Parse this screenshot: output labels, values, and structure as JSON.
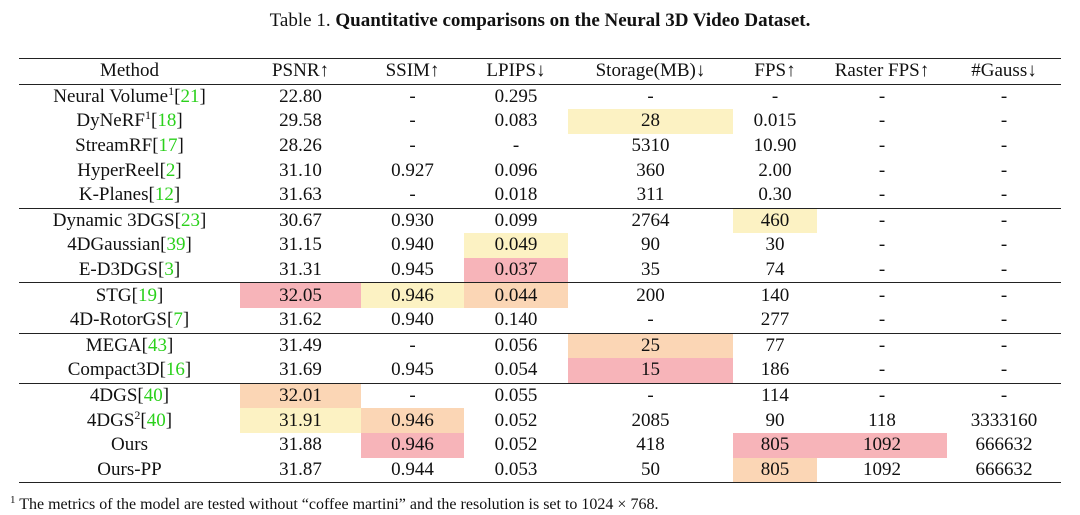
{
  "caption": {
    "prefix": "Table 1.",
    "title": "Quantitative comparisons on the Neural 3D Video Dataset."
  },
  "table": {
    "headers": [
      "Method",
      "PSNR↑",
      "SSIM↑",
      "LPIPS↓",
      "Storage(MB)↓",
      "FPS↑",
      "Raster FPS↑",
      "#Gauss↓"
    ],
    "rows": [
      {
        "method": "Neural Volume",
        "sup": "1",
        "ref": "21",
        "group_start": false,
        "cells": [
          "22.80",
          "-",
          "0.295",
          "-",
          "-",
          "-",
          "-"
        ]
      },
      {
        "method": "DyNeRF",
        "sup": "1",
        "ref": "18",
        "group_start": false,
        "cells": [
          "29.58",
          "-",
          "0.083",
          "28",
          "0.015",
          "-",
          "-"
        ]
      },
      {
        "method": "StreamRF",
        "sup": "",
        "ref": "17",
        "group_start": false,
        "cells": [
          "28.26",
          "-",
          "-",
          "5310",
          "10.90",
          "-",
          "-"
        ]
      },
      {
        "method": "HyperReel",
        "sup": "",
        "ref": "2",
        "group_start": false,
        "cells": [
          "31.10",
          "0.927",
          "0.096",
          "360",
          "2.00",
          "-",
          "-"
        ]
      },
      {
        "method": "K-Planes",
        "sup": "",
        "ref": "12",
        "group_start": false,
        "cells": [
          "31.63",
          "-",
          "0.018",
          "311",
          "0.30",
          "-",
          "-"
        ]
      },
      {
        "method": "Dynamic 3DGS",
        "sup": "",
        "ref": "23",
        "group_start": true,
        "cells": [
          "30.67",
          "0.930",
          "0.099",
          "2764",
          "460",
          "-",
          "-"
        ]
      },
      {
        "method": "4DGaussian",
        "sup": "",
        "ref": "39",
        "group_start": false,
        "cells": [
          "31.15",
          "0.940",
          "0.049",
          "90",
          "30",
          "-",
          "-"
        ]
      },
      {
        "method": "E-D3DGS",
        "sup": "",
        "ref": "3",
        "group_start": false,
        "cells": [
          "31.31",
          "0.945",
          "0.037",
          "35",
          "74",
          "-",
          "-"
        ]
      },
      {
        "method": "STG",
        "sup": "",
        "ref": "19",
        "group_start": true,
        "cells": [
          "32.05",
          "0.946",
          "0.044",
          "200",
          "140",
          "-",
          "-"
        ]
      },
      {
        "method": "4D-RotorGS",
        "sup": "",
        "ref": "7",
        "group_start": false,
        "cells": [
          "31.62",
          "0.940",
          "0.140",
          "-",
          "277",
          "-",
          "-"
        ]
      },
      {
        "method": "MEGA",
        "sup": "",
        "ref": "43",
        "group_start": true,
        "cells": [
          "31.49",
          "-",
          "0.056",
          "25",
          "77",
          "-",
          "-"
        ]
      },
      {
        "method": "Compact3D",
        "sup": "",
        "ref": "16",
        "group_start": false,
        "cells": [
          "31.69",
          "0.945",
          "0.054",
          "15",
          "186",
          "-",
          "-"
        ]
      },
      {
        "method": "4DGS",
        "sup": "",
        "ref": "40",
        "group_start": true,
        "cells": [
          "32.01",
          "-",
          "0.055",
          "-",
          "114",
          "-",
          "-"
        ]
      },
      {
        "method": "4DGS",
        "sup": "2",
        "ref": "40",
        "group_start": false,
        "cells": [
          "31.91",
          "0.946",
          "0.052",
          "2085",
          "90",
          "118",
          "3333160"
        ]
      },
      {
        "method": "Ours",
        "sup": "",
        "ref": "",
        "group_start": false,
        "cells": [
          "31.88",
          "0.946",
          "0.052",
          "418",
          "805",
          "1092",
          "666632"
        ]
      },
      {
        "method": "Ours-PP",
        "sup": "",
        "ref": "",
        "group_start": false,
        "cells": [
          "31.87",
          "0.944",
          "0.053",
          "50",
          "805",
          "1092",
          "666632"
        ]
      }
    ],
    "highlights": [
      {
        "row": 1,
        "col": 3,
        "rank": "third"
      },
      {
        "row": 5,
        "col": 4,
        "rank": "third"
      },
      {
        "row": 6,
        "col": 2,
        "rank": "third"
      },
      {
        "row": 7,
        "col": 2,
        "rank": "first"
      },
      {
        "row": 8,
        "col": 0,
        "rank": "first"
      },
      {
        "row": 8,
        "col": 1,
        "rank": "third"
      },
      {
        "row": 8,
        "col": 2,
        "rank": "second"
      },
      {
        "row": 10,
        "col": 3,
        "rank": "second"
      },
      {
        "row": 11,
        "col": 3,
        "rank": "first"
      },
      {
        "row": 12,
        "col": 0,
        "rank": "second"
      },
      {
        "row": 13,
        "col": 0,
        "rank": "third"
      },
      {
        "row": 13,
        "col": 1,
        "rank": "second"
      },
      {
        "row": 14,
        "col": 1,
        "rank": "first"
      },
      {
        "row": 14,
        "col": 4,
        "rank": "first"
      },
      {
        "row": 14,
        "col": 5,
        "rank": "first"
      },
      {
        "row": 15,
        "col": 4,
        "rank": "second"
      }
    ],
    "bold": [
      {
        "row": 14,
        "col": 4
      },
      {
        "row": 14,
        "col": 5
      },
      {
        "row": 15,
        "col": 3
      }
    ],
    "colors": {
      "first": "#f7b4b9",
      "second": "#fbd6b5",
      "third": "#fcf2c3",
      "ref": "#2bd11c"
    }
  },
  "footnote": {
    "marker": "1",
    "text": "The metrics of the model are tested without “coffee martini” and the resolution is set to 1024 × 768."
  }
}
